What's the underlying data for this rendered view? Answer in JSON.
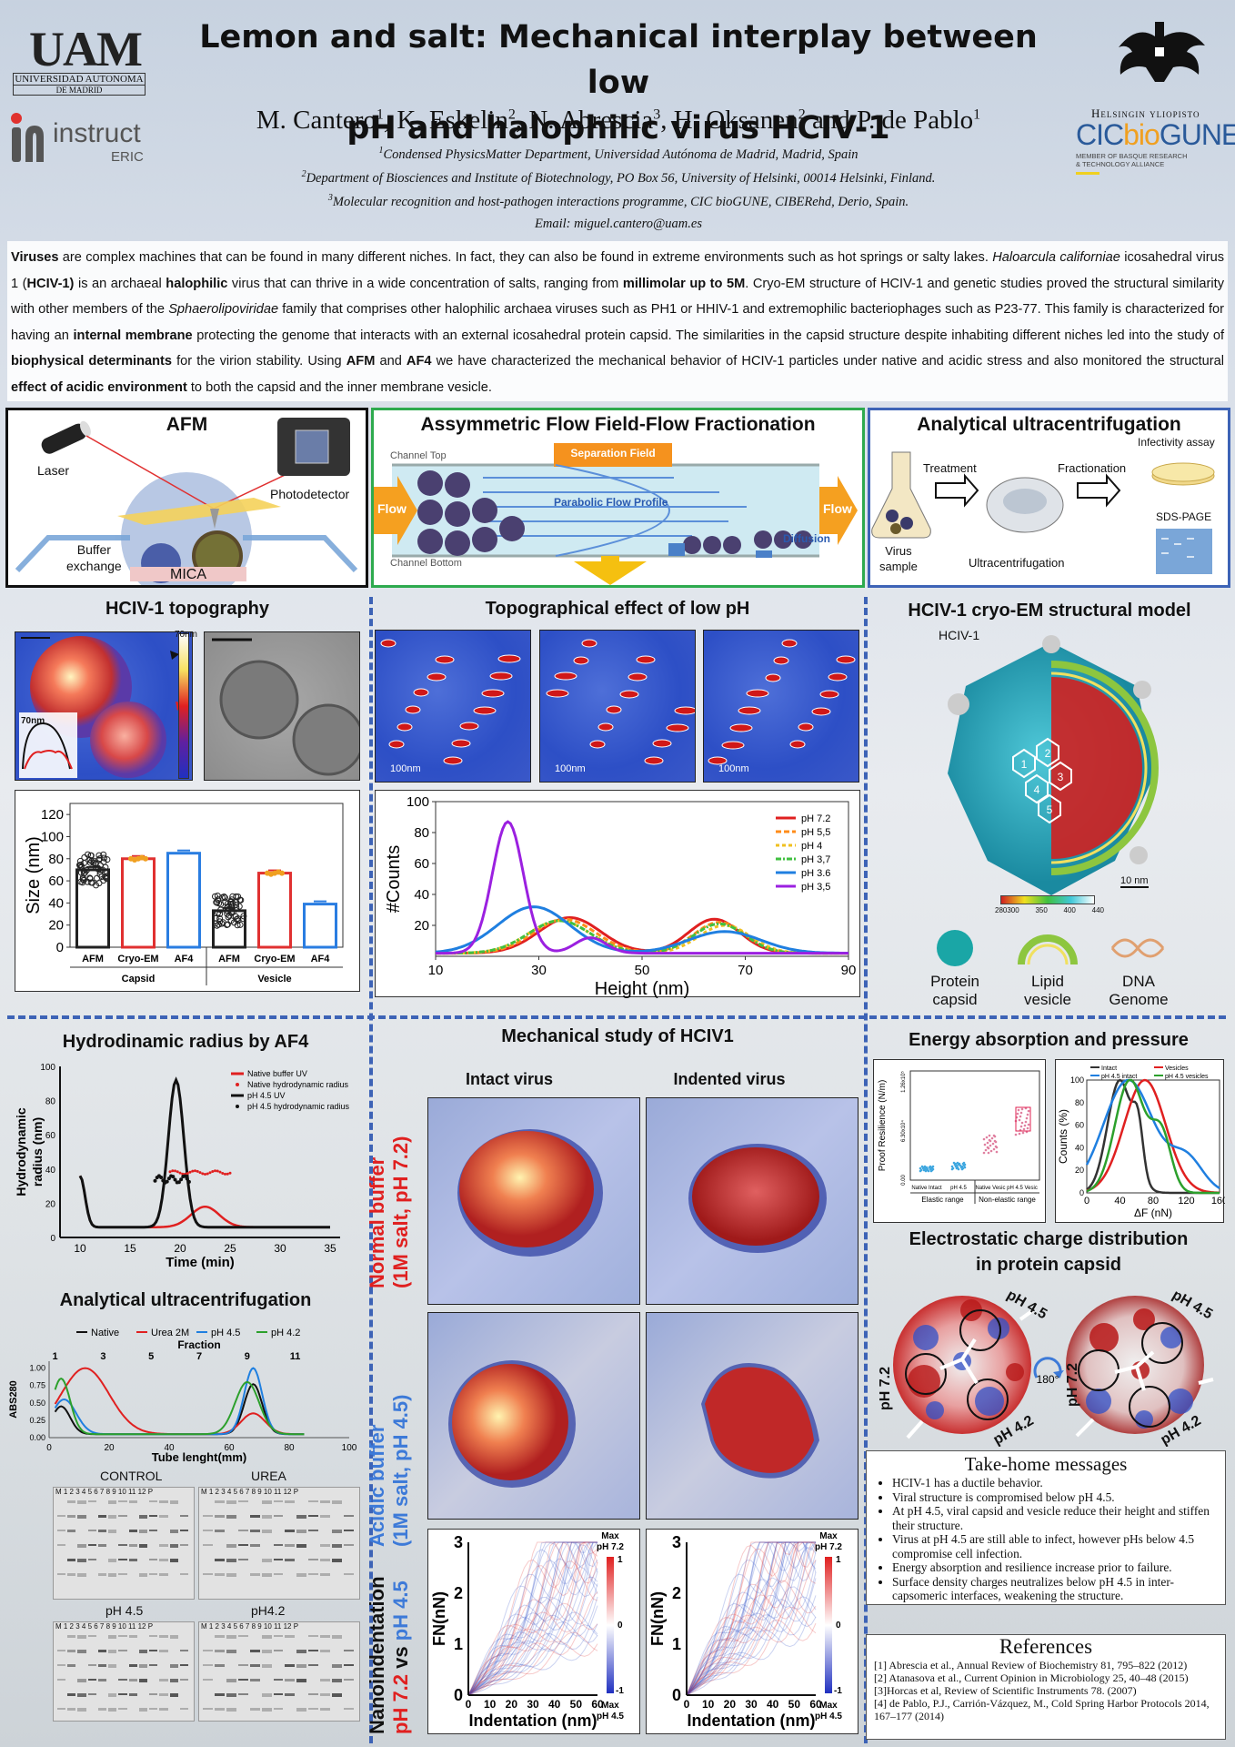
{
  "header": {
    "title_line1": "Lemon and salt: Mechanical interplay between low",
    "title_line2": "pH and halophilic virus HCIV-1",
    "authors": [
      {
        "name": "M. Cantero",
        "sup": "1"
      },
      {
        "name": "K. Eskelin",
        "sup": "2"
      },
      {
        "name": "N. Abrescia",
        "sup": "3"
      },
      {
        "name": "H. Oksanen",
        "sup": "2"
      },
      {
        "name": "P. de Pablo",
        "sup": "1"
      }
    ],
    "affiliations": [
      {
        "sup": "1",
        "text": "Condensed PhysicsMatter  Department, Universidad Autónoma de Madrid, Madrid, Spain"
      },
      {
        "sup": "2",
        "text": "Department of Biosciences and Institute of Biotechnology, PO Box 56, University of Helsinki, 00014 Helsinki, Finland."
      },
      {
        "sup": "3",
        "text": "Molecular recognition and host-pathogen interactions programme, CIC bioGUNE, CIBERehd, Derio, Spain."
      }
    ],
    "email": "Email: miguel.cantero@uam.es",
    "logos": {
      "uam_letters": "UAM",
      "uam_line1": "UNIVERSIDAD AUTONOMA",
      "uam_line2": "DE MADRID",
      "instruct": "instruct",
      "instruct_sub": "ERIC",
      "helsinki": "Helsingin yliopisto",
      "cic_a": "CIC",
      "cic_b": "bio",
      "cic_c": "GUNE",
      "cic_sub1": "MEMBER OF BASQUE RESEARCH",
      "cic_sub2": "& TECHNOLOGY ALLIANCE"
    }
  },
  "abstract": {
    "segments": [
      {
        "t": "Viruses",
        "b": true
      },
      {
        "t": " are complex machines that can be found in many different niches. In fact, they can also be found in extreme environments such as hot springs or salty lakes. "
      },
      {
        "t": "Haloarcula californiae",
        "i": true
      },
      {
        "t": " icosahedral virus 1 ("
      },
      {
        "t": "HCIV-1)",
        "b": true
      },
      {
        "t": " is an archaeal "
      },
      {
        "t": "halophilic",
        "b": true
      },
      {
        "t": " virus that can thrive in a wide concentration of salts, ranging from "
      },
      {
        "t": "millimolar up to 5M",
        "b": true
      },
      {
        "t": ". Cryo-EM structure of HCIV-1 and genetic studies proved the structural similarity with other members of the "
      },
      {
        "t": "Sphaerolipoviridae",
        "i": true
      },
      {
        "t": " family that comprises other halophilic archaea viruses such as PH1 or HHIV-1 and extremophilic bacteriophages such as P23-77. This family is characterized for having an "
      },
      {
        "t": "internal membrane",
        "b": true
      },
      {
        "t": " protecting the genome that interacts with an external icosahedral protein capsid. The similarities in the capsid structure despite inhabiting different niches led into the study of "
      },
      {
        "t": "biophysical determinants",
        "b": true
      },
      {
        "t": " for the virion stability. Using "
      },
      {
        "t": "AFM",
        "b": true
      },
      {
        "t": " and "
      },
      {
        "t": "AF4",
        "b": true
      },
      {
        "t": " we have characterized the mechanical behavior of HCIV-1 particles under native and acidic stress and also monitored the structural "
      },
      {
        "t": "effect of acidic environment",
        "b": true
      },
      {
        "t": " to both the capsid and the inner membrane vesicle."
      }
    ]
  },
  "methods": {
    "afm": {
      "title": "AFM",
      "laser": "Laser",
      "photodetector": "Photodetector",
      "buffer1": "Buffer",
      "buffer2": "exchange",
      "mica": "MICA"
    },
    "af4": {
      "title": "Assymmetric Flow Field-Flow Fractionation",
      "channel_top": "Channel Top",
      "channel_bottom": "Channel Bottom",
      "separation_field": "Separation Field",
      "parabolic": "Parabolic Flow Profile",
      "flow": "Flow",
      "diffusion": "Diffusion"
    },
    "auc": {
      "title": "Analytical ultracentrifugation",
      "treatment": "Treatment",
      "fractionation": "Fractionation",
      "infectivity": "Infectivity assay",
      "sds": "SDS-PAGE",
      "virus1": "Virus",
      "virus2": "sample",
      "ultra": "Ultracentrifugation"
    }
  },
  "topography": {
    "title": "HCIV-1 topography",
    "colorbar_label": "70nm",
    "profile_label": "70nm"
  },
  "low_ph": {
    "title": "Topographical effect of low pH",
    "scale_label": "100nm"
  },
  "cryo": {
    "title": "HCIV-1 cryo-EM structural model",
    "virus_label": "HCIV-1",
    "scale_label": "10 nm",
    "hex_labels": [
      "1",
      "2",
      "3",
      "4",
      "5"
    ],
    "colorbar_ticks": [
      "280300",
      "350",
      "400",
      "440"
    ],
    "legend": [
      {
        "name": "Protein capsid",
        "l1": "Protein",
        "l2": "capsid",
        "color": "#1aa6a6"
      },
      {
        "name": "Lipid vesicle",
        "l1": "Lipid",
        "l2": "vesicle",
        "color": "#8dc63f"
      },
      {
        "name": "DNA Genome",
        "l1": "DNA",
        "l2": "Genome",
        "color": "#e0a070"
      }
    ]
  },
  "hydro": {
    "title": "Hydrodinamic radius by AF4"
  },
  "auc_section": {
    "title": "Analytical ultracentrifugation",
    "control": "CONTROL",
    "urea": "UREA",
    "ph45": "pH 4.5",
    "ph42": "pH4.2",
    "lanes": "M 1  2  3  4  5  6  7  8  9  10 11 12 P"
  },
  "mech": {
    "title": "Mechanical study of HCIV1",
    "intact": "Intact virus",
    "indented": "Indented virus",
    "normal_1": "Normal buffer",
    "normal_2": "(1M salt, pH 7.2)",
    "acidic_1": "Acidic buffer",
    "acidic_2": "(1M salt, pH 4.5)",
    "nano_1": "Nanoindentation",
    "nano_2a": "pH 7.2",
    "nano_2b": " vs ",
    "nano_2c": "pH 4.5",
    "cbar_max": "Max",
    "cbar_top": "pH 7.2",
    "cbar_bot": "pH 4.5",
    "cbar_1": "1",
    "cbar_0": "0",
    "cbar_m1": "-1"
  },
  "energy": {
    "title": "Energy absorption and pressure"
  },
  "electro": {
    "title1": "Electrostatic charge distribution",
    "title2": "in protein capsid",
    "ph72": "pH 7.2",
    "ph45": "pH 4.5",
    "ph42": "pH 4.2",
    "rot": "180°"
  },
  "takehome": {
    "title": "Take-home messages",
    "items": [
      "HCIV-1 has a ductile behavior.",
      "Viral structure is compromised below pH 4.5.",
      "At pH 4.5, viral capsid and vesicle reduce their height and stiffen their structure.",
      "Virus at pH 4.5 are still able to infect, however pHs below 4.5 compromise cell infection.",
      "Energy absorption and resilience increase prior to failure.",
      "Surface density charges neutralizes below pH 4.5 in inter-capsomeric interfaces, weakening the structure."
    ]
  },
  "references": {
    "title": "References",
    "items": [
      "[1] Abrescia et al., Annual Review of Biochemistry 81, 795–822 (2012)",
      "[2] Atanasova et al., Current Opinion in Microbiology 25, 40–48 (2015)",
      "[3]Horcas et al, Review of Scientific Instruments 78. (2007)",
      "[4] de Pablo, P.J., Carrión-Vázquez, M., Cold Spring Harbor Protocols 2014, 167–177 (2014)"
    ]
  },
  "colors": {
    "accent_blue": "#3d63b6",
    "red": "#e02020",
    "green": "#2ca02c"
  },
  "chart_data": [
    {
      "id": "size",
      "type": "bar",
      "ylabel": "Size (nm)",
      "ylim": [
        0,
        130
      ],
      "yticks": [
        0,
        20,
        40,
        60,
        80,
        100,
        120
      ],
      "categories": [
        "AFM",
        "Cryo-EM",
        "AF4",
        "AFM",
        "Cryo-EM",
        "AF4"
      ],
      "groups": [
        "Capsid",
        "Vesicle"
      ],
      "values": [
        70,
        80,
        85,
        33,
        67,
        39
      ],
      "bar_colors": [
        "#222222",
        "#e03030",
        "#2a7de1",
        "#222222",
        "#e03030",
        "#2a7de1"
      ]
    },
    {
      "id": "heights",
      "type": "line",
      "xlabel": "Height (nm)",
      "ylabel": "#Counts",
      "xlim": [
        10,
        90
      ],
      "ylim": [
        0,
        100
      ],
      "xticks": [
        10,
        30,
        50,
        70,
        90
      ],
      "yticks": [
        20,
        40,
        60,
        80,
        100
      ],
      "series": [
        {
          "name": "pH 7.2",
          "color": "#e02020",
          "dash": "",
          "peaks": [
            [
              36,
              23,
              6
            ],
            [
              64,
              22,
              5
            ]
          ]
        },
        {
          "name": "pH 5,5",
          "color": "#ff8c1a",
          "dash": "6,3",
          "peaks": [
            [
              35,
              22,
              6
            ],
            [
              65,
              20,
              5
            ]
          ]
        },
        {
          "name": "pH 4",
          "color": "#f0c020",
          "dash": "4,3",
          "peaks": [
            [
              34,
              21,
              6
            ],
            [
              66,
              18,
              5
            ]
          ]
        },
        {
          "name": "pH 3,7",
          "color": "#40c040",
          "dash": "6,2,2,2",
          "peaks": [
            [
              34,
              21,
              6
            ],
            [
              65,
              19,
              5
            ]
          ]
        },
        {
          "name": "pH 3.6",
          "color": "#1f7fe0",
          "dash": "",
          "peaks": [
            [
              29,
              30,
              7
            ],
            [
              66,
              14,
              7
            ]
          ]
        },
        {
          "name": "pH 3,5",
          "color": "#9b20e0",
          "dash": "",
          "peaks": [
            [
              24,
              85,
              3
            ],
            [
              40,
              10,
              3
            ]
          ]
        }
      ]
    },
    {
      "id": "hydro",
      "type": "line",
      "xlabel": "Time (min)",
      "ylabel": "Hydrodynamic radius (nm)",
      "xlim": [
        8,
        36
      ],
      "ylim": [
        0,
        100
      ],
      "xticks": [
        10,
        15,
        20,
        25,
        30,
        35
      ],
      "yticks": [
        0,
        20,
        40,
        60,
        80,
        100
      ],
      "series": [
        {
          "name": "Native buffer UV",
          "color": "#e02020"
        },
        {
          "name": "Native hydrodynamic radius",
          "color": "#e02020"
        },
        {
          "name": "pH 4.5 UV",
          "color": "#111111"
        },
        {
          "name": "pH 4.5 hydrodynamic radius",
          "color": "#111111"
        }
      ]
    },
    {
      "id": "auc",
      "type": "line",
      "xlabel": "Tube lenght(mm)",
      "ylabel": "ABS280",
      "xlim": [
        0,
        100
      ],
      "ylim": [
        0,
        1.1
      ],
      "xticks": [
        0,
        20,
        40,
        60,
        80,
        100
      ],
      "yticks": [
        0.0,
        0.25,
        0.5,
        0.75,
        1.0
      ],
      "fractions": [
        1,
        3,
        5,
        7,
        9,
        11
      ],
      "fraction_label": "Fraction",
      "series": [
        {
          "name": "Native",
          "color": "#111111"
        },
        {
          "name": "Urea 2M",
          "color": "#e02020"
        },
        {
          "name": "pH 4.5",
          "color": "#1f7fe0"
        },
        {
          "name": "pH 4.2",
          "color": "#2ca02c"
        }
      ]
    },
    {
      "id": "resilience",
      "type": "scatter",
      "ylabel": "Proof Resilience (N/m)",
      "yticks": [
        "0.00",
        "6.30x10⁴",
        "1.26x10⁵"
      ],
      "categories": [
        "Native Intact",
        "pH 4.5",
        "Native Vesic",
        "pH 4.5 Vesic"
      ],
      "groups": [
        "Elastic range",
        "Non-elastic range"
      ]
    },
    {
      "id": "counts",
      "type": "line",
      "xlabel": "ΔF (nN)",
      "ylabel": "Counts (%)",
      "xticks": [
        0,
        40,
        80,
        120,
        160
      ],
      "yticks": [
        0,
        20,
        40,
        60,
        80,
        100
      ],
      "series": [
        {
          "name": "Intact",
          "color": "#333333"
        },
        {
          "name": "Vesicles",
          "color": "#e02020"
        },
        {
          "name": "pH 4.5 intact",
          "color": "#1f7fe0"
        },
        {
          "name": "pH 4.5 vesicles",
          "color": "#2ca02c"
        }
      ]
    },
    {
      "id": "nano",
      "type": "line",
      "xlabel": "Indentation (nm)",
      "ylabel": "FN(nN)",
      "xticks": [
        0,
        10,
        20,
        30,
        40,
        50,
        60
      ],
      "yticks": [
        0,
        1,
        2,
        3
      ]
    }
  ]
}
